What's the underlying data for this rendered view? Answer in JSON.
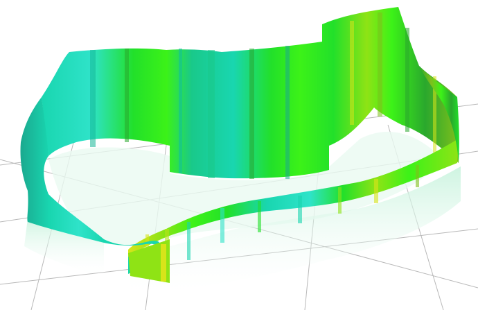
{
  "scene": {
    "subject": "3d-extruded-region-outline",
    "background_color": "#ffffff",
    "grid_color": "#b8b8b8",
    "wall_colors": {
      "teal_dark": "#1aa98f",
      "teal": "#19d6b0",
      "cyan": "#2fe3c9",
      "green": "#22e02a",
      "bright_green": "#3cf218",
      "lime": "#8fe315",
      "yellow": "#d8e41a",
      "olive": "#7fbf1c",
      "dark_green": "#2aa82d"
    },
    "reflection_color": "#d6f7e6",
    "floor_fill_color": "#eafaf1"
  }
}
